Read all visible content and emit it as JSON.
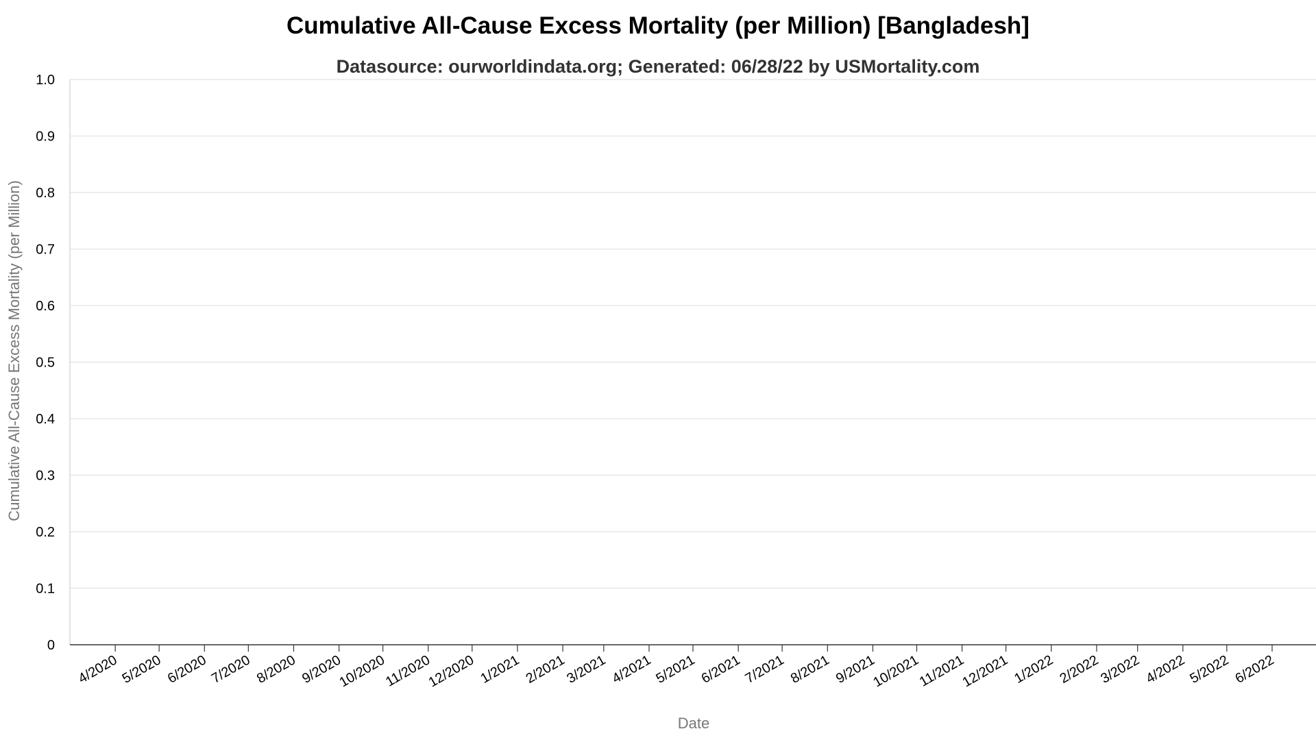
{
  "chart_data": {
    "type": "line",
    "title": "Cumulative All-Cause Excess Mortality (per Million) [Bangladesh]",
    "subtitle": "Datasource: ourworldindata.org; Generated: 06/28/22 by USMortality.com",
    "xlabel": "Date",
    "ylabel": "Cumulative All-Cause Excess Mortality (per Million)",
    "ylim": [
      0,
      1
    ],
    "yticks": [
      "0",
      "0.1",
      "0.2",
      "0.3",
      "0.4",
      "0.5",
      "0.6",
      "0.7",
      "0.8",
      "0.9",
      "1.0"
    ],
    "xticks": [
      "4/2020",
      "5/2020",
      "6/2020",
      "7/2020",
      "8/2020",
      "9/2020",
      "10/2020",
      "11/2020",
      "12/2020",
      "1/2021",
      "2/2021",
      "3/2021",
      "4/2021",
      "5/2021",
      "6/2021",
      "7/2021",
      "8/2021",
      "9/2021",
      "10/2021",
      "11/2021",
      "12/2021",
      "1/2022",
      "2/2022",
      "3/2022",
      "4/2022",
      "5/2022",
      "6/2022"
    ],
    "xtick_dates": [
      "2020-04-01",
      "2020-05-01",
      "2020-06-01",
      "2020-07-01",
      "2020-08-01",
      "2020-09-01",
      "2020-10-01",
      "2020-11-01",
      "2020-12-01",
      "2021-01-01",
      "2021-02-01",
      "2021-03-01",
      "2021-04-01",
      "2021-05-01",
      "2021-06-01",
      "2021-07-01",
      "2021-08-01",
      "2021-09-01",
      "2021-10-01",
      "2021-11-01",
      "2021-12-01",
      "2022-01-01",
      "2022-02-01",
      "2022-03-01",
      "2022-04-01",
      "2022-05-01",
      "2022-06-01"
    ],
    "xlim": [
      "2020-03-01",
      "2022-07-01"
    ],
    "grid": true,
    "series": []
  }
}
